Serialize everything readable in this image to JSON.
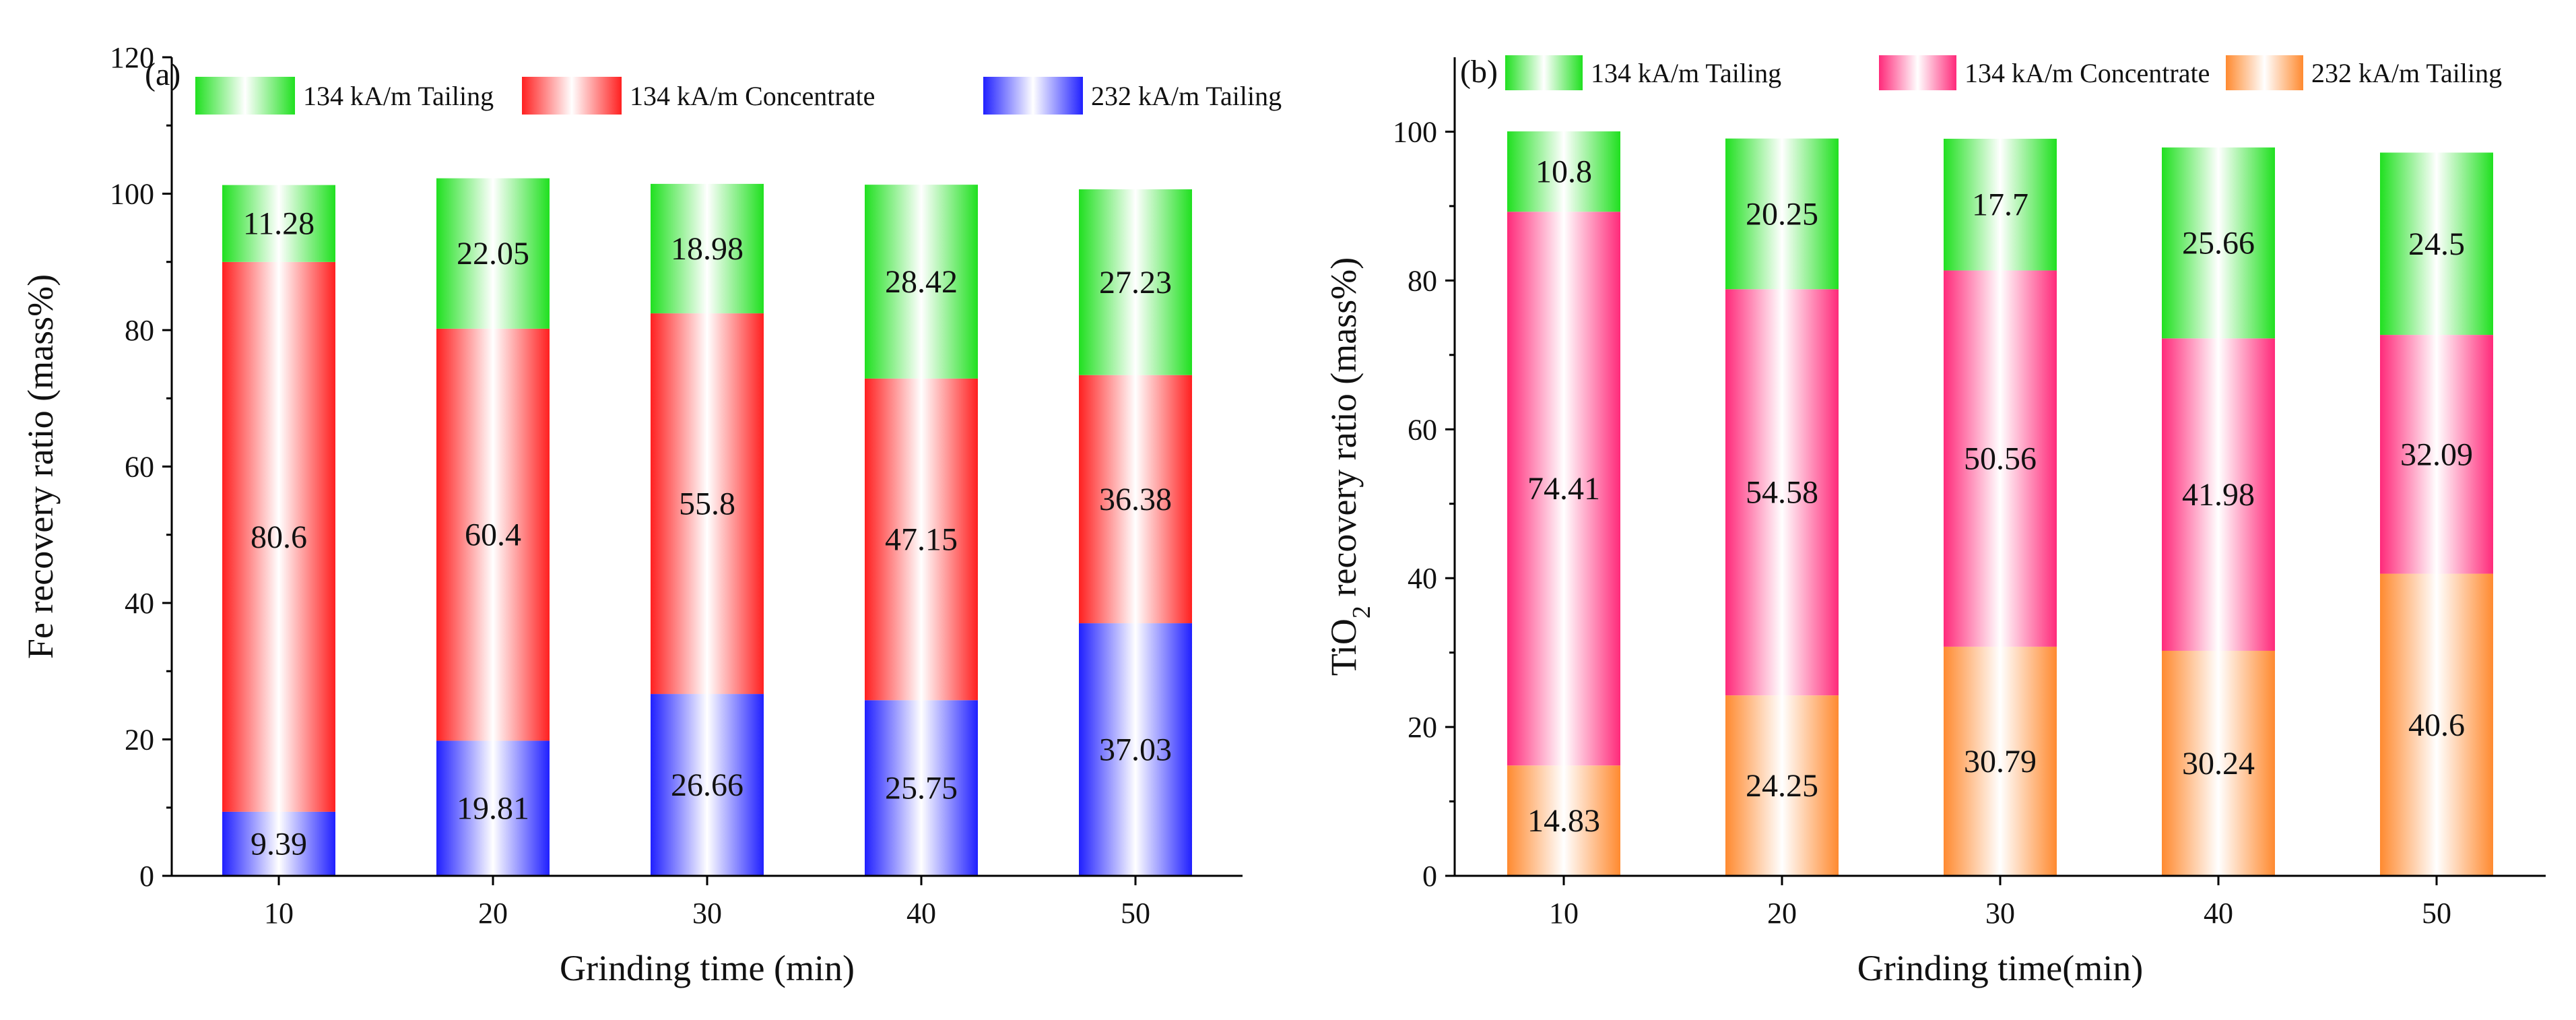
{
  "chart_data": [
    {
      "type": "bar",
      "stacked": true,
      "panel_label": "(a)",
      "xlabel": "Grinding time (min)",
      "ylabel": "Fe recovery ratio (mass%)",
      "ylim": [
        0,
        120
      ],
      "yticks": [
        0,
        20,
        40,
        60,
        80,
        100,
        120
      ],
      "categories": [
        "10",
        "20",
        "30",
        "40",
        "50"
      ],
      "legend_position": "top",
      "series": [
        {
          "name": "232 kA/m Tailing",
          "values": [
            9.39,
            19.81,
            26.66,
            25.75,
            37.03
          ],
          "labels": [
            "9.39",
            "19.81",
            "26.66",
            "25.75",
            "37.03"
          ],
          "color": "#2020ff"
        },
        {
          "name": "134 kA/m Concentrate",
          "values": [
            80.6,
            60.4,
            55.8,
            47.15,
            36.38
          ],
          "labels": [
            "80.6",
            "60.4",
            "55.8",
            "47.15",
            "36.38"
          ],
          "color": "#ff2020"
        },
        {
          "name": "134 kA/m Tailing",
          "values": [
            11.28,
            22.05,
            18.98,
            28.42,
            27.23
          ],
          "labels": [
            "11.28",
            "22.05",
            "18.98",
            "28.42",
            "27.23"
          ],
          "color": "#20e020"
        }
      ],
      "legend": [
        {
          "series": 2,
          "label": "134 kA/m Tailing"
        },
        {
          "series": 1,
          "label": "134 kA/m Concentrate"
        },
        {
          "series": 0,
          "label": "232 kA/m Tailing"
        }
      ]
    },
    {
      "type": "bar",
      "stacked": true,
      "panel_label": "(b)",
      "xlabel": "Grinding time(min)",
      "ylabel_main": "TiO",
      "ylabel_sub": "2",
      "ylabel_rest": " recovery ratio (mass%)",
      "ylim": [
        0,
        110
      ],
      "yticks": [
        0,
        20,
        40,
        60,
        80,
        100
      ],
      "categories": [
        "10",
        "20",
        "30",
        "40",
        "50"
      ],
      "legend_position": "top",
      "series": [
        {
          "name": "232 kA/m Tailing",
          "values": [
            14.83,
            24.25,
            30.79,
            30.24,
            40.6
          ],
          "labels": [
            "14.83",
            "24.25",
            "30.79",
            "30.24",
            "40.6"
          ],
          "color": "#ff8a30"
        },
        {
          "name": "134 kA/m Concentrate",
          "values": [
            74.41,
            54.58,
            50.56,
            41.98,
            32.09
          ],
          "labels": [
            "74.41",
            "54.58",
            "50.56",
            "41.98",
            "32.09"
          ],
          "color": "#ff2a7a"
        },
        {
          "name": "134 kA/m Tailing",
          "values": [
            10.8,
            20.25,
            17.7,
            25.66,
            24.5
          ],
          "labels": [
            "10.8",
            "20.25",
            "17.7",
            "25.66",
            "24.5"
          ],
          "color": "#20e020"
        }
      ],
      "legend": [
        {
          "series": 2,
          "label": "134 kA/m Tailing"
        },
        {
          "series": 1,
          "label": "134 kA/m Concentrate"
        },
        {
          "series": 0,
          "label": "232 kA/m Tailing"
        }
      ]
    }
  ]
}
